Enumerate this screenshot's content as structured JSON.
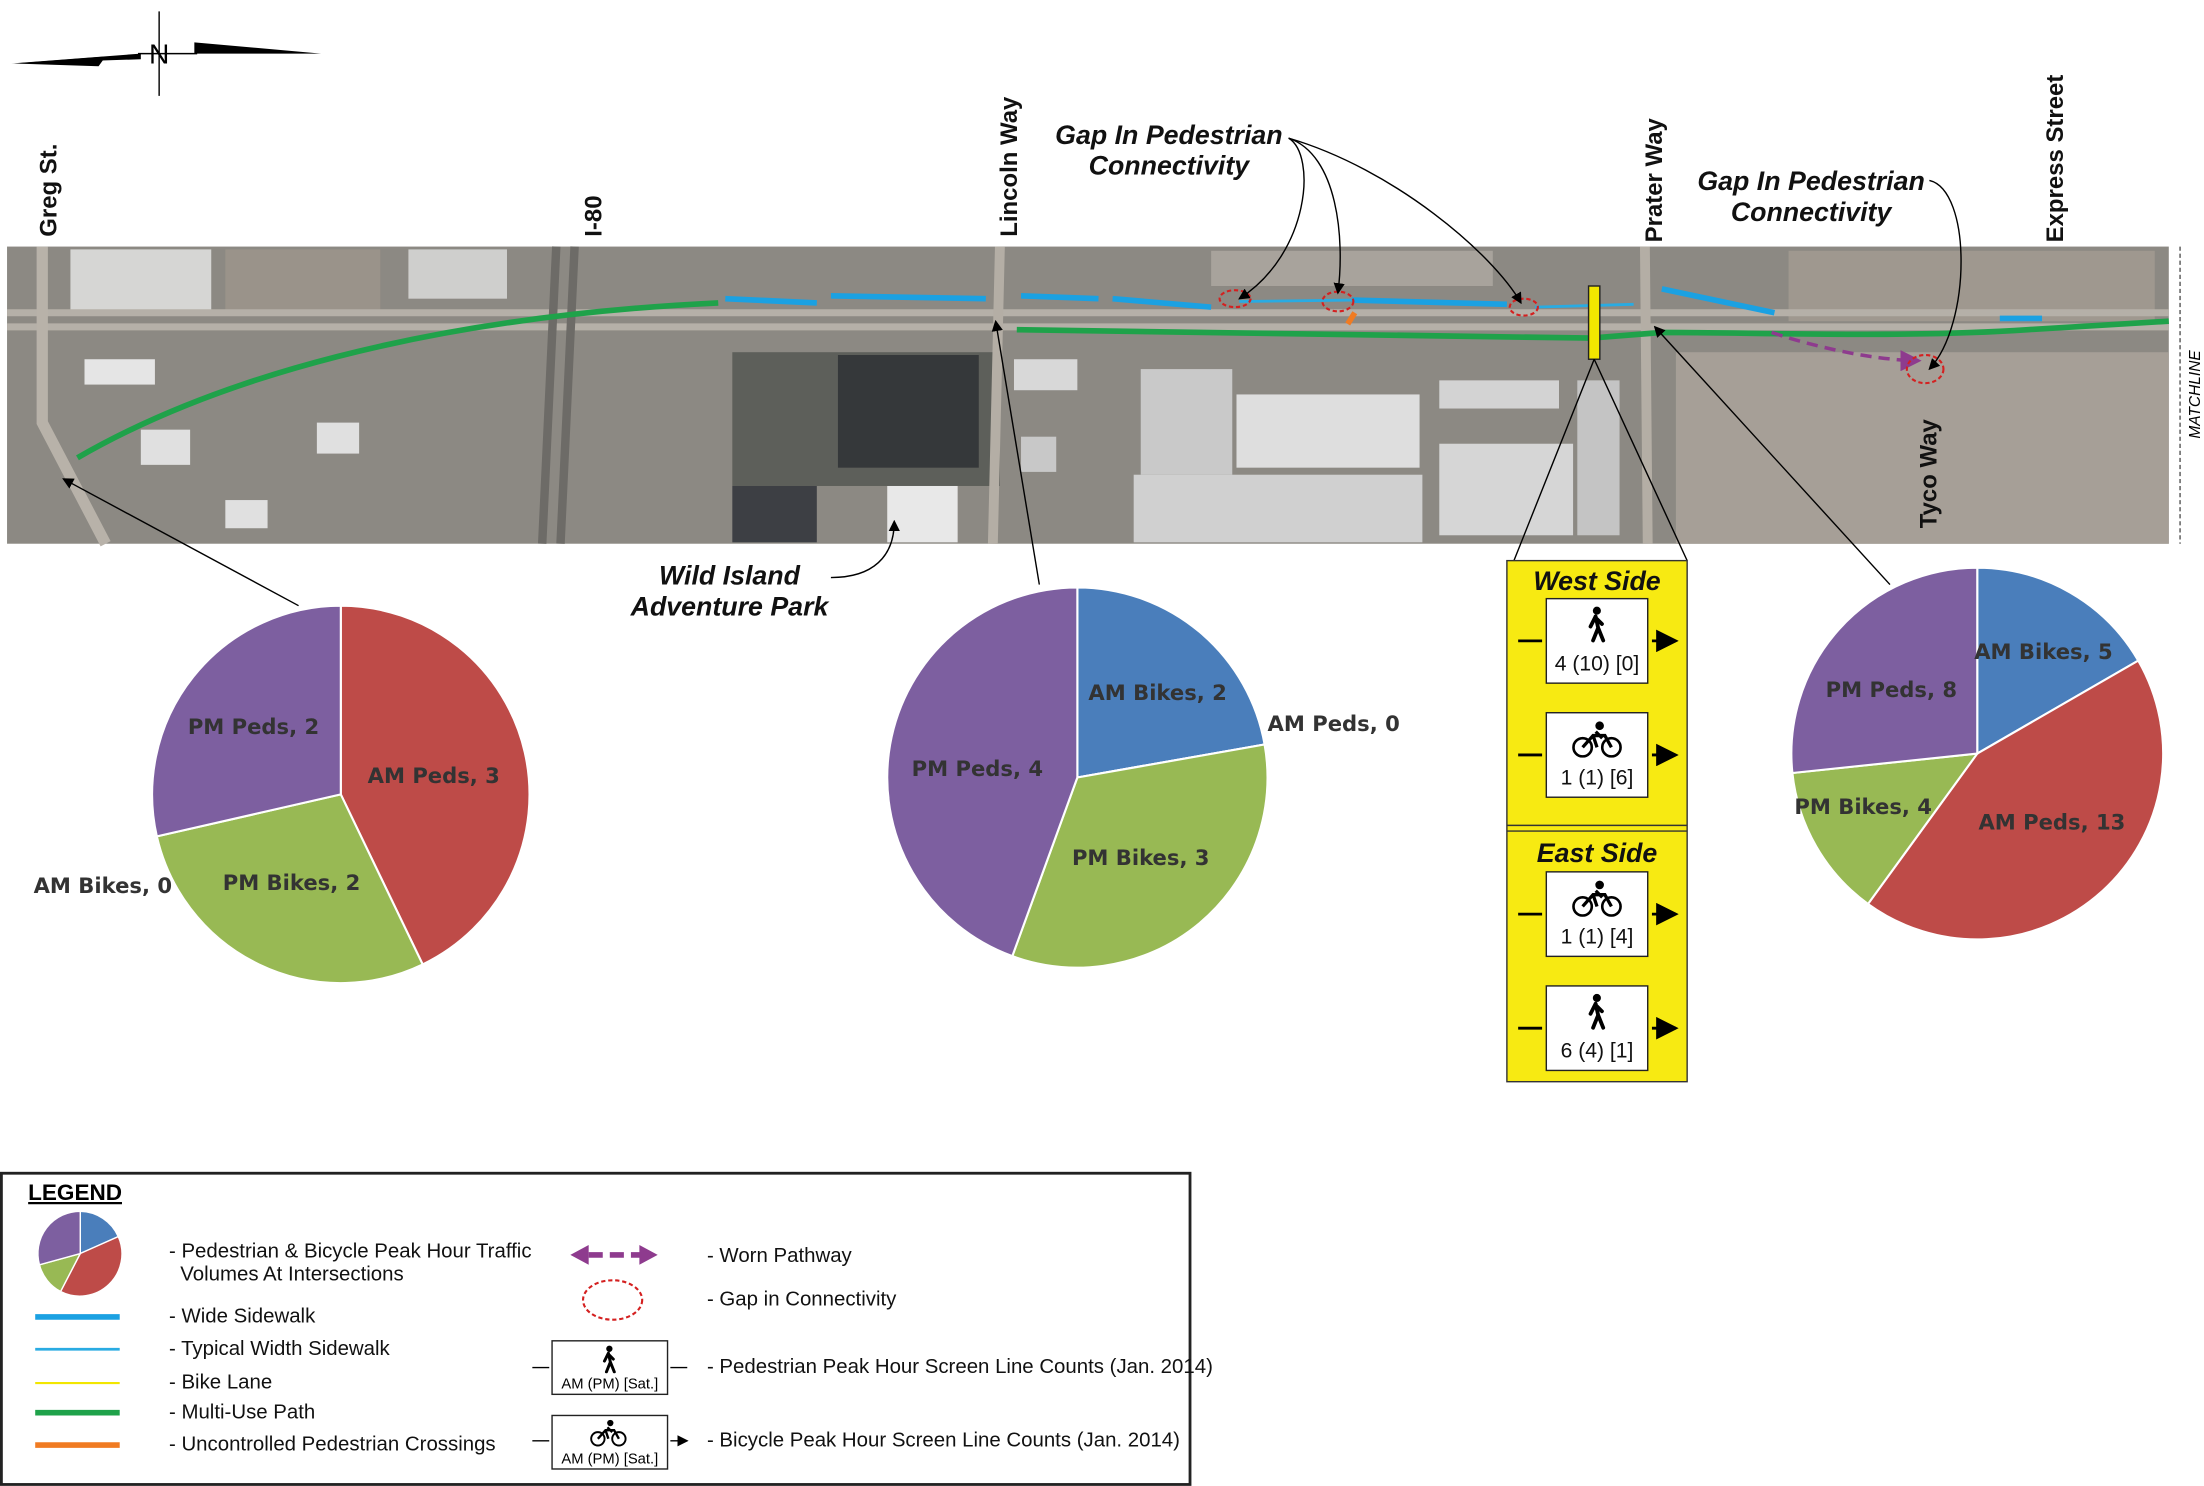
{
  "north_label": "N",
  "map": {
    "streets": [
      "Greg St.",
      "I-80",
      "Lincoln Way",
      "Prater Way",
      "Express Street",
      "Tyco Way"
    ],
    "matchline": "MATCHLINE",
    "annotations": [
      {
        "lines": [
          "Gap In Pedestrian",
          "Connectivity"
        ]
      },
      {
        "lines": [
          "Gap In Pedestrian",
          "Connectivity"
        ]
      },
      {
        "lines": [
          "Wild Island",
          "Adventure Park"
        ]
      }
    ]
  },
  "chart_data": [
    {
      "type": "pie",
      "values": [
        0,
        3,
        2,
        2
      ],
      "value_labels": [
        "AM Bikes, 0",
        "AM Peds, 3",
        "PM Bikes, 2",
        "PM Peds, 2"
      ],
      "colors": [
        "#4a7ebb",
        "#be4b48",
        "#98b954",
        "#7d5fa0"
      ]
    },
    {
      "type": "pie",
      "values": [
        2,
        0,
        3,
        4
      ],
      "value_labels": [
        "AM Bikes, 2",
        "AM Peds, 0",
        "PM Bikes, 3",
        "PM Peds, 4"
      ],
      "colors": [
        "#4a7ebb",
        "#be4b48",
        "#98b954",
        "#7d5fa0"
      ]
    },
    {
      "type": "pie",
      "values": [
        5,
        13,
        4,
        8
      ],
      "value_labels": [
        "AM Bikes, 5",
        "AM Peds, 13",
        "PM Bikes, 4",
        "PM Peds, 8"
      ],
      "colors": [
        "#4a7ebb",
        "#be4b48",
        "#98b954",
        "#7d5fa0"
      ]
    }
  ],
  "screen_lines": [
    {
      "side": "West Side",
      "counts": [
        "4 (10) [0]",
        "1 (1) [6]"
      ]
    },
    {
      "side": "East Side",
      "counts": [
        "1 (1) [4]",
        "6 (4) [1]"
      ]
    }
  ],
  "legend": {
    "title": "LEGEND",
    "left": [
      [
        "- Pedestrian & Bicycle Peak Hour Traffic",
        "Volumes At Intersections"
      ],
      [
        "- Wide Sidewalk"
      ],
      [
        "- Typical Width Sidewalk"
      ],
      [
        "- Bike Lane"
      ],
      [
        "- Multi-Use Path"
      ],
      [
        "- Uncontrolled Pedestrian Crossings"
      ]
    ],
    "right": [
      "- Worn Pathway",
      "- Gap in Connectivity",
      "- Pedestrian Peak Hour Screen Line Counts (Jan. 2014)",
      "- Bicycle Peak Hour Screen Line Counts (Jan. 2014)"
    ],
    "symbol_label": "AM (PM) [Sat.]"
  }
}
